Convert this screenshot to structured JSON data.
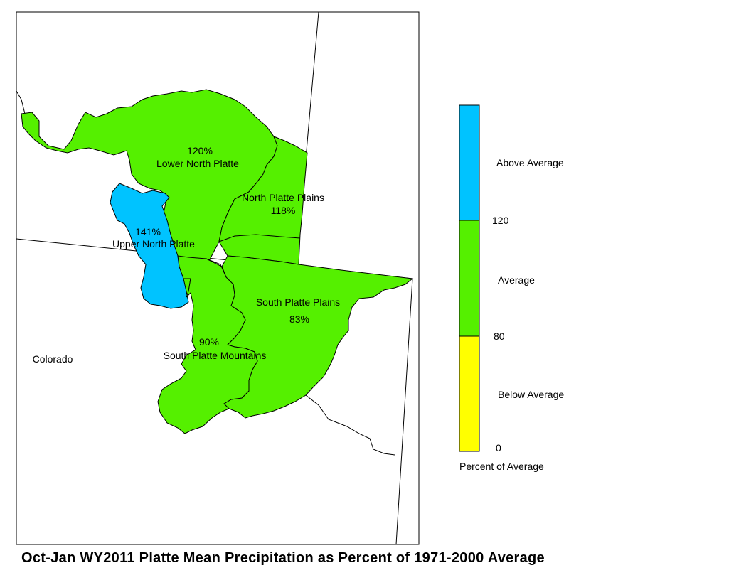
{
  "map": {
    "region_label": "Colorado",
    "basins": [
      {
        "name": "Lower North Platte",
        "percent": "120%",
        "category": "average"
      },
      {
        "name": "North Platte Plains",
        "percent": "118%",
        "category": "average"
      },
      {
        "name": "Upper North Platte",
        "percent": "141%",
        "category": "above"
      },
      {
        "name": "South Platte Plains",
        "percent": "83%",
        "category": "average"
      },
      {
        "name": "South Platte Mountains",
        "percent": "90%",
        "category": "average"
      }
    ]
  },
  "legend": {
    "title": "Percent of Average",
    "classes": [
      {
        "label": "Above Average",
        "color": "#00C3FF"
      },
      {
        "label": "Average",
        "color": "#55F000"
      },
      {
        "label": "Below Average",
        "color": "#FFFF00"
      }
    ],
    "breaks": [
      "120",
      "80",
      "0"
    ]
  },
  "title": "Oct-Jan WY2011 Platte Mean Precipitation as Percent of 1971-2000 Average"
}
